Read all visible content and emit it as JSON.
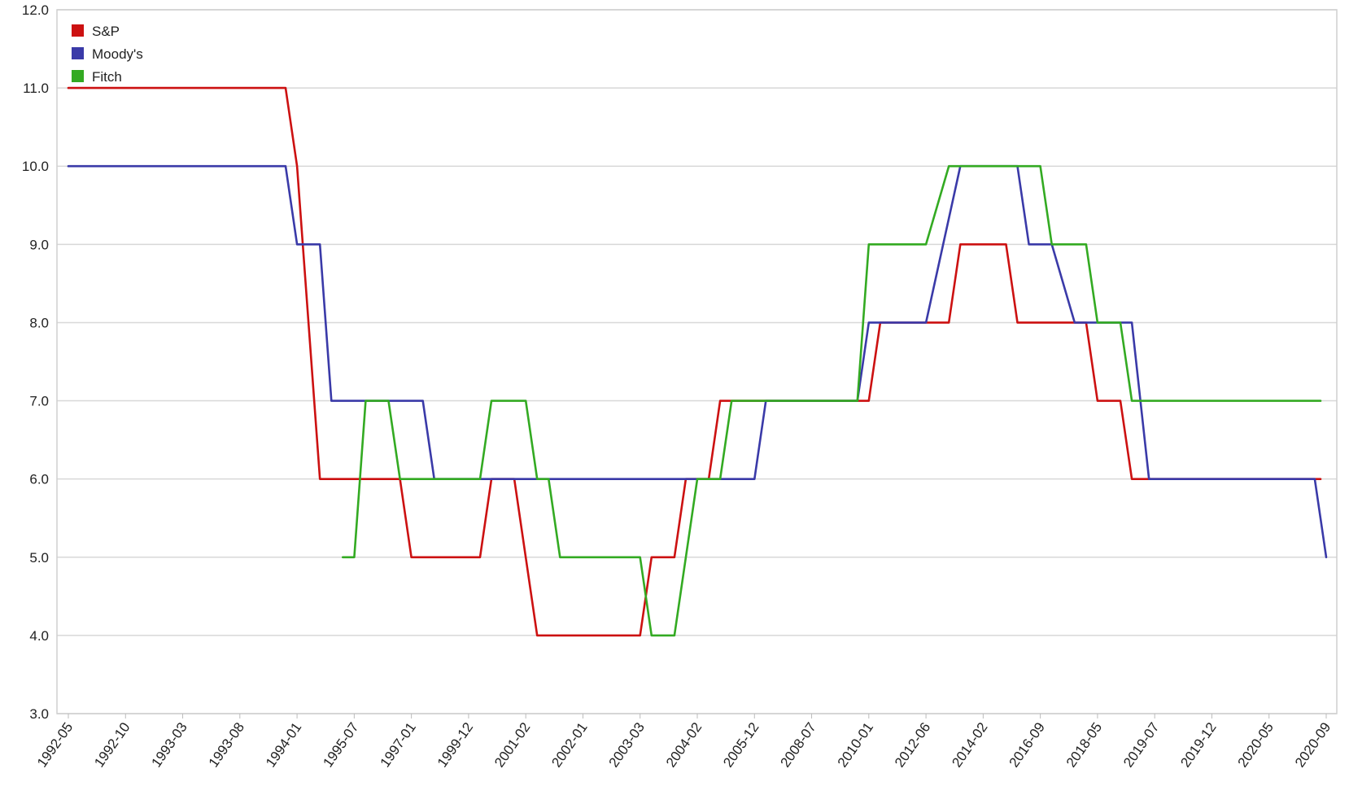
{
  "chart_data": {
    "type": "line",
    "title": "",
    "xlabel": "",
    "ylabel": "",
    "ylim": [
      3.0,
      12.0
    ],
    "yticks": [
      "3.0",
      "4.0",
      "5.0",
      "6.0",
      "7.0",
      "8.0",
      "9.0",
      "10.0",
      "11.0",
      "12.0"
    ],
    "grid": true,
    "legend_position": "top-left",
    "categories": [
      "1992-05",
      "1992-10",
      "1993-03",
      "1993-08",
      "1994-01",
      "1995-07",
      "1997-01",
      "1999-12",
      "2001-02",
      "2002-01",
      "2003-03",
      "2004-02",
      "2005-12",
      "2008-07",
      "2010-01",
      "2012-06",
      "2014-02",
      "2016-09",
      "2018-05",
      "2019-07",
      "2019-12",
      "2020-05",
      "2020-09"
    ],
    "series": [
      {
        "name": "S&P",
        "color": "#cc1111",
        "points": [
          [
            0,
            11
          ],
          [
            3.8,
            11
          ],
          [
            4.0,
            10
          ],
          [
            4.4,
            6
          ],
          [
            5.8,
            6
          ],
          [
            6.0,
            5
          ],
          [
            7.2,
            5
          ],
          [
            7.4,
            6
          ],
          [
            7.8,
            6
          ],
          [
            8.2,
            4
          ],
          [
            10.0,
            4
          ],
          [
            10.2,
            5
          ],
          [
            10.6,
            5
          ],
          [
            10.8,
            6
          ],
          [
            11.2,
            6
          ],
          [
            11.4,
            7
          ],
          [
            14.0,
            7
          ],
          [
            14.2,
            8
          ],
          [
            15.4,
            8
          ],
          [
            15.6,
            9
          ],
          [
            16.4,
            9
          ],
          [
            16.6,
            8
          ],
          [
            17.8,
            8
          ],
          [
            18.0,
            7
          ],
          [
            18.4,
            7
          ],
          [
            18.6,
            6
          ],
          [
            21.9,
            6
          ]
        ]
      },
      {
        "name": "Moody's",
        "color": "#3a3aa8",
        "points": [
          [
            0,
            10
          ],
          [
            3.8,
            10
          ],
          [
            4.0,
            9
          ],
          [
            4.4,
            9
          ],
          [
            4.6,
            7
          ],
          [
            6.2,
            7
          ],
          [
            6.4,
            6
          ],
          [
            12.0,
            6
          ],
          [
            12.2,
            7
          ],
          [
            13.8,
            7
          ],
          [
            14.0,
            8
          ],
          [
            15.0,
            8
          ],
          [
            15.6,
            10
          ],
          [
            16.6,
            10
          ],
          [
            16.8,
            9
          ],
          [
            17.2,
            9
          ],
          [
            17.6,
            8
          ],
          [
            18.6,
            8
          ],
          [
            18.9,
            6
          ],
          [
            21.8,
            6
          ],
          [
            22.0,
            5
          ]
        ]
      },
      {
        "name": "Fitch",
        "color": "#33aa22",
        "points": [
          [
            4.8,
            5
          ],
          [
            5.0,
            5
          ],
          [
            5.2,
            7
          ],
          [
            5.6,
            7
          ],
          [
            5.8,
            6
          ],
          [
            7.2,
            6
          ],
          [
            7.4,
            7
          ],
          [
            8.0,
            7
          ],
          [
            8.2,
            6
          ],
          [
            8.4,
            6
          ],
          [
            8.6,
            5
          ],
          [
            10.0,
            5
          ],
          [
            10.2,
            4
          ],
          [
            10.6,
            4
          ],
          [
            11.0,
            6
          ],
          [
            11.4,
            6
          ],
          [
            11.6,
            7
          ],
          [
            13.8,
            7
          ],
          [
            14.0,
            9
          ],
          [
            15.0,
            9
          ],
          [
            15.4,
            10
          ],
          [
            17.0,
            10
          ],
          [
            17.2,
            9
          ],
          [
            17.8,
            9
          ],
          [
            18.0,
            8
          ],
          [
            18.4,
            8
          ],
          [
            18.6,
            7
          ],
          [
            21.9,
            7
          ]
        ]
      }
    ]
  }
}
